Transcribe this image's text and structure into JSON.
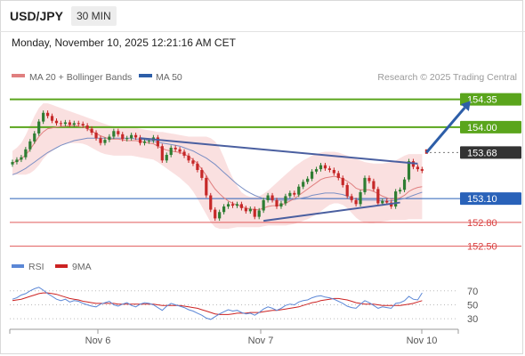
{
  "header": {
    "pair": "USD/JPY",
    "timeframe": "30 MIN"
  },
  "datetime": "Monday, November 10, 2025 12:21:16 AM CET",
  "legend": {
    "bb_label": "MA 20 + Bollinger Bands",
    "ma50_label": "MA 50",
    "credit": "Research © 2025 Trading Central"
  },
  "colors": {
    "resistance": "#5aa51c",
    "pivot": "#2962b9",
    "support": "#e05a5a",
    "current": "#333333",
    "arrow": "#2d5ea8",
    "trend": "#4a5fa0",
    "bb": "#f5c6c6",
    "ma20": "#e07f7f",
    "ma50": "#7b8fc4",
    "rsi": "#5b87d6",
    "rsi_ma": "#cc2222",
    "up": "#2e7d32",
    "down": "#c62828"
  },
  "chart_data": [
    {
      "type": "candlestick",
      "x_labels": [
        "Nov 6",
        "Nov 7",
        "Nov 10"
      ],
      "y_range": [
        152.35,
        154.48
      ],
      "levels": [
        {
          "price": 154.35,
          "label": "154.35",
          "kind": "resistance"
        },
        {
          "price": 154.0,
          "label": "154.00",
          "kind": "resistance"
        },
        {
          "price": 153.68,
          "label": "153.68",
          "kind": "current"
        },
        {
          "price": 153.1,
          "label": "153.10",
          "kind": "pivot"
        },
        {
          "price": 152.8,
          "label": "152.80",
          "kind": "support"
        },
        {
          "price": 152.5,
          "label": "152.50",
          "kind": "support"
        }
      ],
      "closes": [
        153.56,
        153.59,
        153.62,
        153.72,
        153.82,
        153.92,
        154.07,
        154.18,
        154.14,
        154.08,
        154.05,
        154.04,
        154.06,
        154.03,
        154.05,
        154.04,
        154.02,
        153.98,
        153.93,
        153.86,
        153.8,
        153.84,
        153.88,
        153.95,
        153.91,
        153.85,
        153.86,
        153.9,
        153.87,
        153.8,
        153.82,
        153.83,
        153.87,
        153.76,
        153.58,
        153.65,
        153.74,
        153.72,
        153.69,
        153.64,
        153.58,
        153.54,
        153.46,
        153.36,
        153.14,
        152.96,
        152.85,
        152.93,
        153.0,
        153.03,
        153.01,
        153.03,
        152.98,
        152.94,
        152.97,
        152.87,
        152.95,
        153.08,
        153.14,
        153.08,
        153.0,
        153.04,
        153.13,
        153.17,
        153.15,
        153.25,
        153.31,
        153.35,
        153.44,
        153.47,
        153.52,
        153.48,
        153.46,
        153.42,
        153.36,
        153.27,
        153.13,
        153.08,
        153.03,
        153.18,
        153.36,
        153.32,
        153.22,
        153.04,
        153.07,
        153.05,
        153.0,
        153.19,
        153.21,
        153.34,
        153.57,
        153.5,
        153.47,
        153.45
      ],
      "ma20": [
        153.55,
        153.57,
        153.6,
        153.65,
        153.72,
        153.8,
        153.88,
        153.94,
        153.98,
        153.99,
        154.0,
        154.01,
        154.01,
        154.02,
        154.02,
        154.01,
        154.0,
        153.98,
        153.95,
        153.92,
        153.89,
        153.87,
        153.85,
        153.85,
        153.85,
        153.84,
        153.83,
        153.83,
        153.83,
        153.82,
        153.81,
        153.8,
        153.79,
        153.76,
        153.73,
        153.71,
        153.7,
        153.69,
        153.68,
        153.66,
        153.63,
        153.59,
        153.54,
        153.47,
        153.39,
        153.3,
        153.22,
        153.16,
        153.11,
        153.07,
        153.04,
        153.02,
        153.0,
        152.98,
        152.97,
        152.96,
        152.96,
        152.98,
        153.0,
        153.01,
        153.01,
        153.02,
        153.04,
        153.07,
        153.1,
        153.14,
        153.18,
        153.22,
        153.26,
        153.3,
        153.34,
        153.36,
        153.37,
        153.38,
        153.37,
        153.35,
        153.32,
        153.28,
        153.23,
        153.21,
        153.21,
        153.21,
        153.19,
        153.16,
        153.13,
        153.11,
        153.09,
        153.1,
        153.11,
        153.14,
        153.19,
        153.22,
        153.24,
        153.25
      ],
      "bb_upper": [
        153.7,
        153.74,
        153.8,
        153.9,
        154.02,
        154.14,
        154.24,
        154.3,
        154.3,
        154.28,
        154.26,
        154.24,
        154.22,
        154.2,
        154.18,
        154.16,
        154.14,
        154.12,
        154.1,
        154.08,
        154.06,
        154.04,
        154.02,
        154.01,
        154.0,
        154.0,
        153.99,
        153.99,
        153.99,
        153.98,
        153.97,
        153.96,
        153.95,
        153.94,
        153.94,
        153.93,
        153.92,
        153.91,
        153.9,
        153.89,
        153.88,
        153.88,
        153.88,
        153.88,
        153.88,
        153.86,
        153.82,
        153.74,
        153.62,
        153.48,
        153.36,
        153.26,
        153.18,
        153.14,
        153.12,
        153.12,
        153.13,
        153.16,
        153.2,
        153.25,
        153.3,
        153.35,
        153.4,
        153.45,
        153.5,
        153.54,
        153.58,
        153.61,
        153.64,
        153.66,
        153.68,
        153.69,
        153.69,
        153.69,
        153.68,
        153.66,
        153.64,
        153.62,
        153.6,
        153.58,
        153.56,
        153.55,
        153.54,
        153.54,
        153.54,
        153.55,
        153.56,
        153.58,
        153.61,
        153.64,
        153.66,
        153.66,
        153.66,
        153.66
      ],
      "bb_lower": [
        153.4,
        153.4,
        153.4,
        153.4,
        153.42,
        153.46,
        153.52,
        153.6,
        153.66,
        153.7,
        153.74,
        153.77,
        153.79,
        153.8,
        153.8,
        153.8,
        153.79,
        153.77,
        153.74,
        153.71,
        153.68,
        153.66,
        153.65,
        153.64,
        153.64,
        153.64,
        153.64,
        153.64,
        153.63,
        153.62,
        153.61,
        153.6,
        153.59,
        153.56,
        153.52,
        153.48,
        153.44,
        153.4,
        153.36,
        153.31,
        153.26,
        153.19,
        153.1,
        153.0,
        152.9,
        152.8,
        152.74,
        152.72,
        152.72,
        152.72,
        152.73,
        152.74,
        152.74,
        152.74,
        152.74,
        152.74,
        152.74,
        152.75,
        152.76,
        152.76,
        152.76,
        152.76,
        152.76,
        152.77,
        152.78,
        152.8,
        152.82,
        152.84,
        152.87,
        152.9,
        152.94,
        152.98,
        153.02,
        153.04,
        153.04,
        153.02,
        152.98,
        152.92,
        152.86,
        152.82,
        152.8,
        152.79,
        152.79,
        152.8,
        152.81,
        152.82,
        152.83,
        152.83,
        152.83,
        152.83,
        152.84,
        152.84,
        152.84,
        152.84
      ],
      "ma50": [
        153.4,
        153.42,
        153.45,
        153.48,
        153.52,
        153.56,
        153.6,
        153.64,
        153.68,
        153.71,
        153.74,
        153.77,
        153.79,
        153.81,
        153.83,
        153.84,
        153.85,
        153.86,
        153.86,
        153.86,
        153.86,
        153.86,
        153.86,
        153.86,
        153.86,
        153.86,
        153.86,
        153.86,
        153.85,
        153.85,
        153.84,
        153.83,
        153.82,
        153.81,
        153.8,
        153.79,
        153.78,
        153.77,
        153.76,
        153.74,
        153.72,
        153.7,
        153.67,
        153.64,
        153.61,
        153.57,
        153.53,
        153.48,
        153.43,
        153.38,
        153.33,
        153.28,
        153.24,
        153.2,
        153.17,
        153.14,
        153.12,
        153.1,
        153.09,
        153.08,
        153.08,
        153.08,
        153.08,
        153.08,
        153.09,
        153.1,
        153.11,
        153.12,
        153.14,
        153.15,
        153.16,
        153.17,
        153.17,
        153.17,
        153.16,
        153.15,
        153.13,
        153.11,
        153.09,
        153.08,
        153.08,
        153.08,
        153.08,
        153.08,
        153.07,
        153.07,
        153.07,
        153.08,
        153.09,
        153.1,
        153.12,
        153.14,
        153.16,
        153.18
      ],
      "trendlines": [
        {
          "from": [
            29,
            153.86
          ],
          "to": [
            92,
            153.54
          ]
        },
        {
          "from": [
            57,
            152.82
          ],
          "to": [
            88,
            153.05
          ]
        }
      ],
      "forecast_arrow": {
        "from": [
          94,
          153.68
        ],
        "to": [
          104,
          154.33
        ]
      }
    },
    {
      "type": "line",
      "title": "RSI",
      "legend": [
        "RSI",
        "9MA"
      ],
      "y_ticks": [
        70,
        50,
        30
      ],
      "y_range": [
        20,
        85
      ],
      "rsi": [
        58,
        60,
        64,
        66,
        70,
        73,
        75,
        71,
        66,
        62,
        58,
        56,
        58,
        54,
        56,
        55,
        52,
        50,
        48,
        47,
        51,
        53,
        55,
        50,
        48,
        51,
        53,
        49,
        47,
        51,
        53,
        52,
        50,
        46,
        42,
        48,
        52,
        50,
        48,
        46,
        43,
        41,
        38,
        35,
        31,
        29,
        33,
        37,
        40,
        43,
        41,
        42,
        39,
        37,
        38,
        35,
        39,
        44,
        47,
        45,
        42,
        45,
        49,
        51,
        50,
        54,
        56,
        57,
        60,
        62,
        63,
        61,
        60,
        58,
        55,
        52,
        48,
        46,
        45,
        51,
        56,
        53,
        49,
        45,
        47,
        46,
        45,
        52,
        53,
        56,
        62,
        58,
        57,
        67
      ],
      "rsi_ma": [
        56,
        57,
        58,
        60,
        62,
        64,
        66,
        67,
        67,
        66,
        65,
        63,
        61,
        59,
        58,
        57,
        55,
        54,
        53,
        52,
        52,
        52,
        52,
        52,
        51,
        51,
        51,
        51,
        51,
        51,
        51,
        51,
        51,
        50,
        49,
        49,
        49,
        49,
        49,
        48,
        47,
        46,
        45,
        43,
        41,
        39,
        37,
        36,
        36,
        36,
        37,
        38,
        38,
        38,
        39,
        39,
        39,
        40,
        41,
        42,
        42,
        43,
        44,
        45,
        46,
        47,
        49,
        51,
        53,
        54,
        56,
        57,
        58,
        59,
        59,
        58,
        57,
        55,
        53,
        52,
        51,
        51,
        51,
        50,
        49,
        49,
        49,
        49,
        49,
        50,
        51,
        52,
        54,
        56
      ]
    }
  ]
}
